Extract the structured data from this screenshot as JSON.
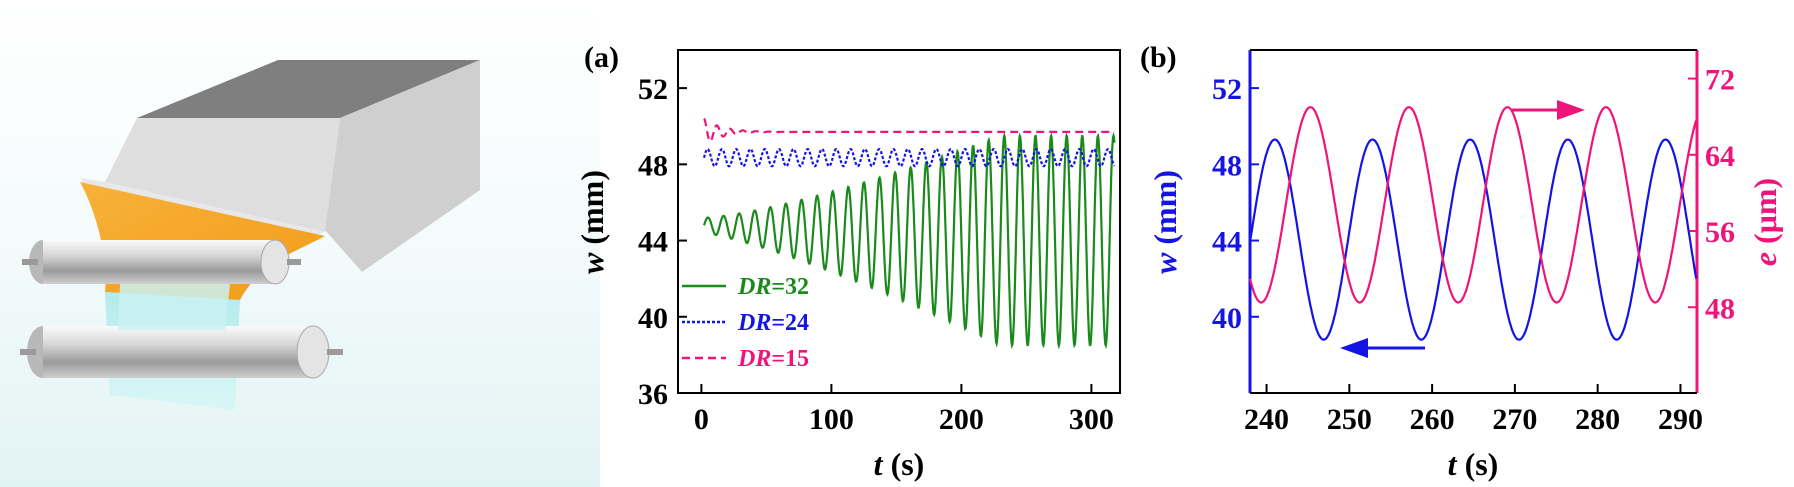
{
  "colors": {
    "green": "#1a8a1a",
    "blue": "#1414e6",
    "pink": "#f0147a",
    "gray_light": "#d4d4d4",
    "gray_dark": "#7f7f7f",
    "orange": "#f5a623",
    "cyan": "#bfeff0"
  },
  "chart_data": [
    {
      "type": "line",
      "panel_label": "(a)",
      "xlabel_italic": "t",
      "xlabel_unit": " (s)",
      "ylabel_italic": "w",
      "ylabel_unit": " (mm)",
      "xlim": [
        -18,
        322
      ],
      "ylim": [
        36,
        54
      ],
      "xticks": [
        0,
        100,
        200,
        300
      ],
      "yticks": [
        36,
        40,
        44,
        48,
        52
      ],
      "grid": false,
      "legend_position": "bottom-left",
      "series": [
        {
          "name": "DR=32",
          "name_prefix": "DR",
          "name_suffix": "=32",
          "color": "#1a8a1a",
          "style": "solid",
          "model": {
            "t_start": 2,
            "t_end": 318,
            "period": 12,
            "center_start": 44.8,
            "center_end": 44.0,
            "amp_start": 0.4,
            "amp_end": 5.5,
            "growth_end_t": 230
          }
        },
        {
          "name": "DR=24",
          "name_prefix": "DR",
          "name_suffix": "=24",
          "color": "#1414e6",
          "style": "dotted",
          "model": {
            "t_start": 2,
            "t_end": 318,
            "period": 11,
            "center": 48.35,
            "amp": 0.45
          }
        },
        {
          "name": "DR=15",
          "name_prefix": "DR",
          "name_suffix": "=15",
          "color": "#f0147a",
          "style": "dashed",
          "model": {
            "t_start": 2,
            "t_end": 318,
            "level": 49.7,
            "transient_amp": 0.7,
            "transient_decay": 14,
            "period": 10
          }
        }
      ]
    },
    {
      "type": "line",
      "panel_label": "(b)",
      "xlabel_italic": "t",
      "xlabel_unit": " (s)",
      "ylabel_left_italic": "w",
      "ylabel_left_unit": " (mm)",
      "ylabel_right_italic": "e",
      "ylabel_right_unit": " (μm)",
      "xlim": [
        238,
        292
      ],
      "ylim_left": [
        36,
        54
      ],
      "ylim_right": [
        39,
        75
      ],
      "xticks": [
        240,
        250,
        260,
        270,
        280,
        290
      ],
      "yticks_left": [
        40,
        44,
        48,
        52
      ],
      "yticks_right": [
        48,
        56,
        64,
        72
      ],
      "grid": false,
      "series": [
        {
          "name": "w",
          "axis": "left",
          "color": "#1414e6",
          "peaks_t": [
            241.0,
            252.8,
            264.6,
            276.4,
            288.2
          ],
          "peak": 49.3,
          "trough": 38.8
        },
        {
          "name": "e",
          "axis": "right",
          "color": "#f0147a",
          "peaks_t": [
            245.3,
            257.2,
            269.1,
            281.0
          ],
          "peak": 69.0,
          "trough": 48.5
        }
      ],
      "annotations": [
        {
          "type": "arrow",
          "direction": "left",
          "color": "#1414e6",
          "points_to": "left axis"
        },
        {
          "type": "arrow",
          "direction": "right",
          "color": "#f0147a",
          "points_to": "right axis"
        }
      ]
    }
  ]
}
